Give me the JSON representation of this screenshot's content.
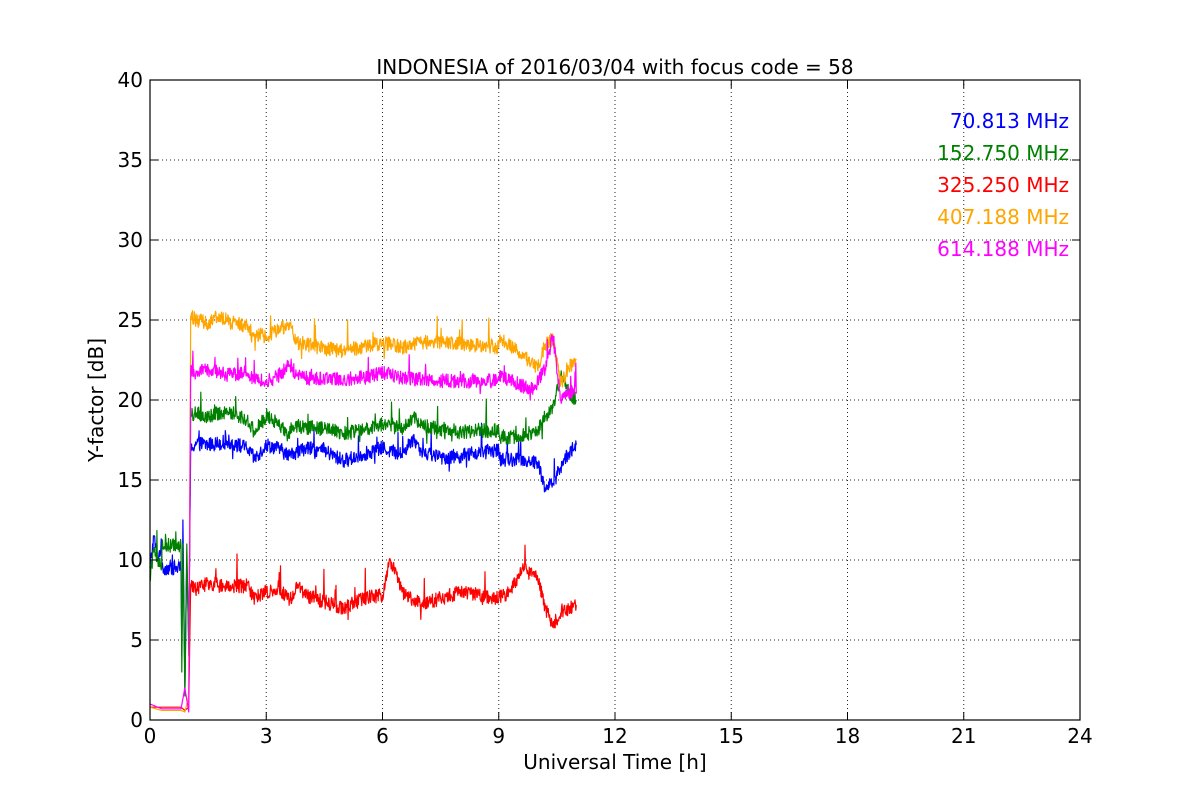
{
  "chart_data": {
    "type": "line",
    "title": "INDONESIA of 2016/03/04 with focus code = 58",
    "xlabel": "Universal Time [h]",
    "ylabel": "Y-factor [dB]",
    "xlim": [
      0,
      24
    ],
    "ylim": [
      0,
      40
    ],
    "xticks": [
      0,
      3,
      6,
      9,
      12,
      15,
      18,
      21,
      24
    ],
    "yticks": [
      0,
      5,
      10,
      15,
      20,
      25,
      30,
      35,
      40
    ],
    "xtick_labels": [
      "0",
      "3",
      "6",
      "9",
      "12",
      "15",
      "18",
      "21",
      "24"
    ],
    "ytick_labels": [
      "0",
      "5",
      "10",
      "15",
      "20",
      "25",
      "30",
      "35",
      "40"
    ],
    "grid": true,
    "legend_position": "top-right",
    "series": [
      {
        "name": "70.813 MHz",
        "color": "#0000ff",
        "x": [
          0.0,
          0.1,
          0.2,
          0.3,
          0.31,
          0.8,
          0.82,
          0.85,
          0.9,
          0.95,
          1.0,
          1.05,
          1.2,
          1.5,
          2.0,
          2.5,
          2.7,
          3.0,
          3.3,
          3.6,
          3.62,
          3.8,
          4.0,
          4.5,
          5.0,
          5.5,
          6.0,
          6.5,
          6.8,
          7.0,
          7.5,
          8.0,
          8.5,
          9.0,
          9.02,
          9.5,
          10.0,
          10.2,
          10.4,
          10.6,
          10.8,
          11.0
        ],
        "y": [
          9.5,
          11.5,
          10.0,
          11.0,
          9.5,
          9.5,
          4.0,
          12.5,
          2.0,
          10.0,
          5.0,
          17.0,
          17.3,
          17.2,
          17.4,
          17.0,
          16.3,
          17.2,
          17.0,
          16.5,
          16.8,
          16.7,
          17.0,
          16.8,
          16.2,
          16.6,
          17.0,
          16.6,
          17.6,
          16.8,
          16.4,
          16.5,
          16.7,
          16.9,
          16.3,
          16.3,
          16.1,
          14.5,
          14.8,
          15.8,
          16.7,
          17.2
        ]
      },
      {
        "name": "152.750 MHz",
        "color": "#008000",
        "x": [
          0.0,
          0.1,
          0.2,
          0.3,
          0.31,
          0.8,
          0.82,
          0.85,
          0.9,
          0.95,
          1.0,
          1.05,
          1.2,
          1.5,
          2.0,
          2.5,
          2.7,
          3.0,
          3.3,
          3.6,
          3.62,
          3.8,
          4.0,
          4.5,
          5.0,
          5.5,
          6.0,
          6.5,
          6.8,
          7.0,
          7.5,
          8.0,
          8.5,
          9.0,
          9.02,
          9.5,
          10.0,
          10.2,
          10.4,
          10.6,
          10.8,
          11.0
        ],
        "y": [
          9.0,
          10.5,
          10.0,
          9.5,
          10.9,
          10.9,
          3.0,
          11.0,
          1.5,
          11.0,
          4.0,
          19.0,
          19.2,
          19.0,
          19.3,
          18.8,
          18.0,
          19.0,
          18.6,
          17.6,
          18.3,
          18.4,
          18.3,
          18.2,
          17.9,
          18.1,
          18.5,
          18.2,
          19.0,
          18.4,
          18.2,
          18.0,
          18.1,
          18.1,
          17.7,
          17.7,
          18.1,
          19.0,
          19.5,
          21.5,
          20.5,
          20.0
        ]
      },
      {
        "name": "325.250 MHz",
        "color": "#ff0000",
        "x": [
          0.0,
          0.3,
          0.8,
          0.9,
          1.0,
          1.05,
          1.2,
          1.5,
          2.0,
          2.5,
          2.7,
          3.0,
          3.3,
          3.6,
          3.62,
          3.8,
          4.0,
          4.5,
          5.0,
          5.5,
          6.0,
          6.2,
          6.5,
          7.0,
          7.5,
          8.0,
          8.5,
          9.0,
          9.02,
          9.3,
          9.6,
          9.8,
          10.0,
          10.2,
          10.4,
          10.6,
          10.8,
          11.0
        ],
        "y": [
          0.8,
          0.8,
          0.8,
          0.6,
          0.8,
          8.5,
          8.2,
          8.6,
          8.3,
          8.4,
          7.6,
          8.0,
          8.3,
          7.5,
          7.5,
          8.5,
          7.8,
          7.4,
          7.0,
          7.6,
          7.8,
          10.0,
          8.0,
          7.2,
          7.6,
          8.0,
          7.8,
          7.6,
          7.7,
          8.0,
          9.5,
          9.2,
          9.0,
          7.0,
          6.0,
          6.7,
          7.0,
          7.2
        ]
      },
      {
        "name": "407.188 MHz",
        "color": "#ffa500",
        "x": [
          0.0,
          0.3,
          0.8,
          0.9,
          1.0,
          1.05,
          1.2,
          1.5,
          1.8,
          2.0,
          2.5,
          2.7,
          3.0,
          3.3,
          3.6,
          3.62,
          3.8,
          4.0,
          4.5,
          5.0,
          5.5,
          6.0,
          6.5,
          7.0,
          7.5,
          8.0,
          8.5,
          9.0,
          9.02,
          9.5,
          10.0,
          10.2,
          10.4,
          10.6,
          10.8,
          11.0
        ],
        "y": [
          0.8,
          0.6,
          0.6,
          0.5,
          1.5,
          25.2,
          25.0,
          24.8,
          25.3,
          24.9,
          24.6,
          24.1,
          24.0,
          24.4,
          24.7,
          24.7,
          23.6,
          23.5,
          23.2,
          23.1,
          23.3,
          23.6,
          23.3,
          23.6,
          23.6,
          23.5,
          23.4,
          23.3,
          23.8,
          23.0,
          22.0,
          23.5,
          23.8,
          21.0,
          22.0,
          22.5
        ]
      },
      {
        "name": "614.188 MHz",
        "color": "#ff00ff",
        "x": [
          0.0,
          0.3,
          0.8,
          0.9,
          1.0,
          1.05,
          1.2,
          1.5,
          2.0,
          2.5,
          2.7,
          3.0,
          3.3,
          3.6,
          3.62,
          3.8,
          4.0,
          4.5,
          5.0,
          5.5,
          6.0,
          6.5,
          7.0,
          7.5,
          8.0,
          8.5,
          9.0,
          9.02,
          9.5,
          9.9,
          10.2,
          10.4,
          10.6,
          10.8,
          11.0
        ],
        "y": [
          1.0,
          0.7,
          0.7,
          2.0,
          0.5,
          21.8,
          21.7,
          21.9,
          21.6,
          21.7,
          21.3,
          21.1,
          21.5,
          22.2,
          22.2,
          21.5,
          21.4,
          21.3,
          21.3,
          21.4,
          21.7,
          21.4,
          21.3,
          21.2,
          21.2,
          21.2,
          21.2,
          21.6,
          21.0,
          20.6,
          22.0,
          24.0,
          20.0,
          20.5,
          20.4
        ]
      }
    ]
  }
}
